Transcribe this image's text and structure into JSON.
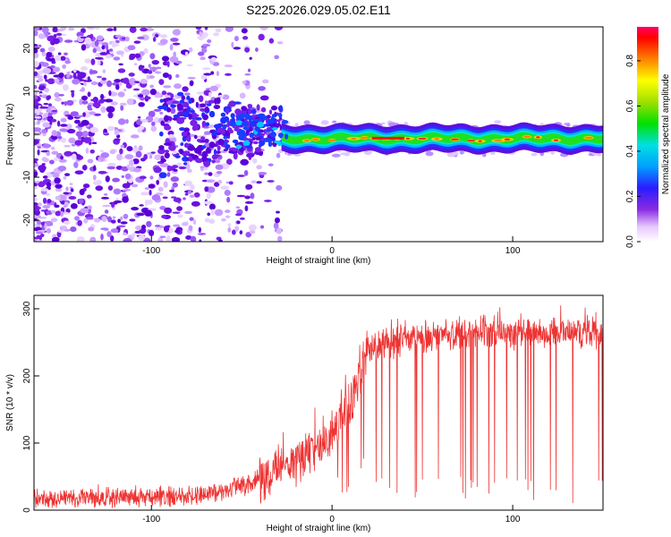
{
  "title": "S225.2026.029.05.02.E11",
  "chart_data": [
    {
      "type": "heatmap",
      "xlabel": "Height of straight line (km)",
      "ylabel": "Frequency (Hz)",
      "xlim": [
        -165,
        150
      ],
      "ylim": [
        -25,
        25
      ],
      "xticks": [
        -100,
        0,
        100
      ],
      "yticks": [
        -20,
        -10,
        0,
        10,
        20
      ],
      "colorbar": {
        "label": "Normalized spectral amplitude",
        "range": [
          0,
          0.95
        ],
        "ticks": [
          0,
          0.2,
          0.4,
          0.6,
          0.8
        ]
      },
      "description_points": {
        "noise_region_x": [
          -165,
          -30
        ],
        "signal_band_center_hz": -1,
        "signal_band_x": [
          -30,
          150
        ]
      }
    },
    {
      "type": "line",
      "xlabel": "Height of straight line (km)",
      "ylabel": "SNR (10 * v/v)",
      "xlim": [
        -165,
        150
      ],
      "ylim": [
        0,
        320
      ],
      "xticks": [
        -100,
        0,
        100
      ],
      "yticks": [
        0,
        100,
        200,
        300
      ],
      "color": "#ee3333",
      "trend": {
        "x": [
          -165,
          -120,
          -80,
          -60,
          -40,
          -20,
          0,
          10,
          20,
          40,
          80,
          120,
          150
        ],
        "y": [
          18,
          18,
          20,
          28,
          45,
          75,
          110,
          160,
          240,
          255,
          265,
          265,
          265
        ]
      }
    }
  ]
}
